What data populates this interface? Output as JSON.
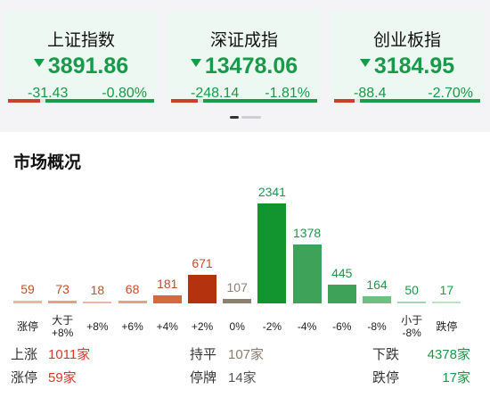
{
  "indices": [
    {
      "name": "上证指数",
      "price": "3891.86",
      "change": "-31.43",
      "pct": "-0.80%",
      "up_ratio": 0.22
    },
    {
      "name": "深证成指",
      "price": "13478.06",
      "change": "-248.14",
      "pct": "-1.81%",
      "up_ratio": 0.18
    },
    {
      "name": "创业板指",
      "price": "3184.95",
      "change": "-88.4",
      "pct": "-2.70%",
      "up_ratio": 0.14
    }
  ],
  "colors": {
    "up": "#c9412a",
    "down": "#189a4a",
    "flat": "#8a7c6c"
  },
  "section_title": "市场概况",
  "chart_data": {
    "type": "bar",
    "categories": [
      "涨停",
      "大于\n+8%",
      "+8%",
      "+6%",
      "+4%",
      "+2%",
      "0%",
      "-2%",
      "-4%",
      "-6%",
      "-8%",
      "小于\n-8%",
      "跌停"
    ],
    "values": [
      59,
      73,
      18,
      68,
      181,
      671,
      107,
      2341,
      1378,
      445,
      164,
      50,
      17
    ],
    "bar_colors": [
      "#e9b9a6",
      "#e3a286",
      "#e9b9a6",
      "#e3a286",
      "#d5683f",
      "#b5320f",
      "#8d8272",
      "#12942f",
      "#3ea359",
      "#3ea359",
      "#6fbe82",
      "#a3d6b0",
      "#bde3c5"
    ],
    "label_colors": [
      "#c0502d",
      "#c0502d",
      "#c0502d",
      "#c0502d",
      "#c0502d",
      "#c0502d",
      "#8d8272",
      "#189a4a",
      "#189a4a",
      "#189a4a",
      "#189a4a",
      "#189a4a",
      "#189a4a"
    ]
  },
  "stats": {
    "up_label": "上涨",
    "up_value": "1011家",
    "flat_label": "持平",
    "flat_value": "107家",
    "down_label": "下跌",
    "down_value": "4378家",
    "limit_up_label": "涨停",
    "limit_up_value": "59家",
    "suspend_label": "停牌",
    "suspend_value": "14家",
    "limit_down_label": "跌停",
    "limit_down_value": "17家"
  }
}
